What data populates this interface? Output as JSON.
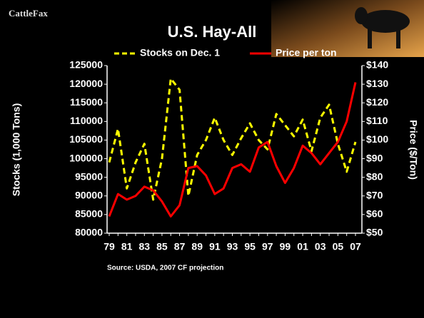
{
  "chart_data": {
    "type": "line",
    "logo": "CattleFax",
    "title": "U.S. Hay-All",
    "source": "Source: USDA, 2007 CF projection",
    "ylabel": "Stocks (1,000 Tons)",
    "y2label": "Price ($/Ton)",
    "categories": [
      "79",
      null,
      "81",
      null,
      "83",
      null,
      "85",
      null,
      "87",
      null,
      "89",
      null,
      "91",
      null,
      "93",
      null,
      "95",
      null,
      "97",
      null,
      "99",
      null,
      "01",
      null,
      "03",
      null,
      "05",
      null,
      "07"
    ],
    "series": [
      {
        "name": "Stocks on Dec. 1",
        "color": "#ffff00",
        "dashed": true,
        "values": [
          99000,
          108000,
          92000,
          99000,
          104000,
          89000,
          100000,
          121500,
          118500,
          90000,
          101000,
          105000,
          111000,
          105000,
          101000,
          105500,
          109500,
          105000,
          102500,
          112000,
          109000,
          106000,
          110500,
          102000,
          111000,
          114500,
          104000,
          96500,
          104500
        ]
      },
      {
        "name": "Price per ton",
        "color": "#ff0000",
        "axis": "y2",
        "values": [
          59,
          71,
          68,
          70,
          75,
          73,
          67,
          59,
          65,
          85,
          86,
          81,
          71,
          74,
          85,
          87,
          83,
          96,
          99,
          86,
          77,
          85,
          97,
          93,
          87,
          93,
          99,
          110,
          131
        ]
      }
    ],
    "ylim": [
      80000,
      125000
    ],
    "yticks": [
      80000,
      85000,
      90000,
      95000,
      100000,
      105000,
      110000,
      115000,
      120000,
      125000
    ],
    "y2lim": [
      50,
      140
    ],
    "y2ticks": [
      {
        "value": 50,
        "label": "$50"
      },
      {
        "value": 60,
        "label": "$60"
      },
      {
        "value": 70,
        "label": "$70"
      },
      {
        "value": 80,
        "label": "$80"
      },
      {
        "value": 90,
        "label": "$90"
      },
      {
        "value": 100,
        "label": "$100"
      },
      {
        "value": 110,
        "label": "$110"
      },
      {
        "value": 120,
        "label": "$120"
      },
      {
        "value": 130,
        "label": "$130"
      },
      {
        "value": 140,
        "label": "$140"
      }
    ]
  }
}
